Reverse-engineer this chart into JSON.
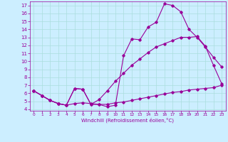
{
  "xlabel": "Windchill (Refroidissement éolien,°C)",
  "bg_color": "#cceeff",
  "grid_color": "#aadddd",
  "line_color": "#990099",
  "xlim": [
    -0.5,
    23.5
  ],
  "ylim": [
    3.8,
    17.5
  ],
  "xticks": [
    0,
    1,
    2,
    3,
    4,
    5,
    6,
    7,
    8,
    9,
    10,
    11,
    12,
    13,
    14,
    15,
    16,
    17,
    18,
    19,
    20,
    21,
    22,
    23
  ],
  "yticks": [
    4,
    5,
    6,
    7,
    8,
    9,
    10,
    11,
    12,
    13,
    14,
    15,
    16,
    17
  ],
  "line1_x": [
    0,
    1,
    2,
    3,
    4,
    5,
    6,
    7,
    8,
    9,
    10,
    11,
    12,
    13,
    14,
    15,
    16,
    17,
    18,
    19,
    20,
    21,
    22,
    23
  ],
  "line1_y": [
    6.3,
    5.7,
    5.1,
    4.7,
    4.5,
    6.6,
    6.5,
    4.6,
    4.6,
    4.3,
    4.5,
    10.7,
    12.8,
    12.7,
    14.3,
    14.9,
    17.2,
    17.0,
    16.2,
    14.0,
    13.0,
    11.8,
    10.5,
    9.3
  ],
  "line2_x": [
    0,
    1,
    2,
    3,
    4,
    5,
    6,
    7,
    8,
    9,
    10,
    11,
    12,
    13,
    14,
    15,
    16,
    17,
    18,
    19,
    20,
    21,
    22,
    23
  ],
  "line2_y": [
    6.3,
    5.7,
    5.1,
    4.7,
    4.5,
    6.6,
    6.5,
    4.6,
    5.2,
    6.3,
    7.5,
    8.5,
    9.5,
    10.3,
    11.1,
    11.8,
    12.2,
    12.6,
    13.0,
    13.0,
    13.1,
    11.9,
    9.5,
    7.2
  ],
  "line3_x": [
    0,
    1,
    2,
    3,
    4,
    5,
    6,
    7,
    8,
    9,
    10,
    11,
    12,
    13,
    14,
    15,
    16,
    17,
    18,
    19,
    20,
    21,
    22,
    23
  ],
  "line3_y": [
    6.3,
    5.7,
    5.1,
    4.7,
    4.5,
    4.7,
    4.8,
    4.7,
    4.6,
    4.6,
    4.8,
    4.9,
    5.1,
    5.3,
    5.5,
    5.7,
    5.9,
    6.1,
    6.2,
    6.4,
    6.5,
    6.6,
    6.7,
    7.0
  ]
}
